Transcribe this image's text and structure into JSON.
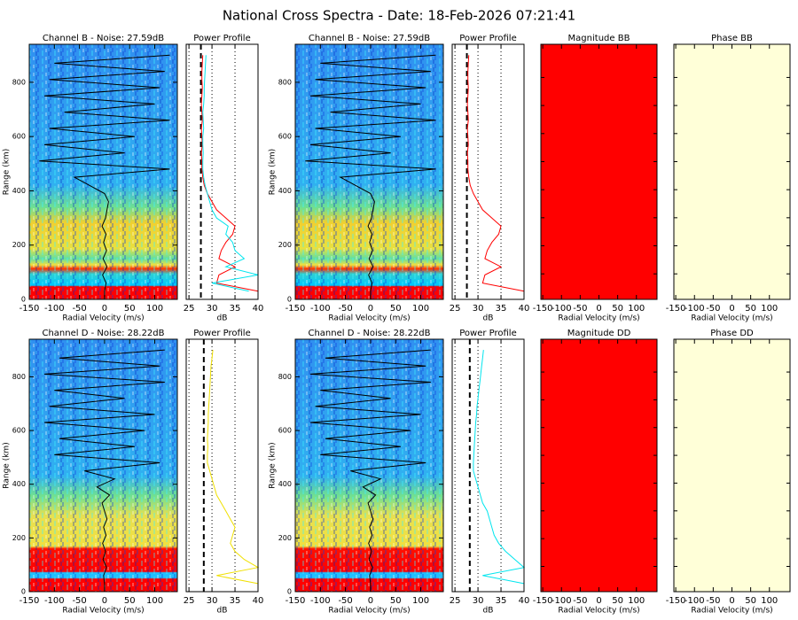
{
  "title": "National Cross Spectra - Date: 18-Feb-2026 07:21:41",
  "chart_data": [
    {
      "type": "spectra",
      "title": "Channel B - Noise: 27.59dB",
      "xlabel": "Radial Velocity (m/s)",
      "ylabel": "Range (km)",
      "xlim": [
        -150,
        145
      ],
      "xticks": [
        -150,
        -100,
        -50,
        0,
        50,
        100
      ],
      "ylim": [
        0,
        940
      ],
      "yticks": [
        0,
        200,
        400,
        600,
        800
      ],
      "color": "#000000",
      "y": [
        0,
        30,
        60,
        90,
        120,
        150,
        180,
        210,
        240,
        270,
        300,
        330,
        360,
        390,
        420,
        450,
        480,
        510,
        540,
        570,
        600,
        630,
        660,
        690,
        720,
        750,
        780,
        810,
        840,
        870,
        900
      ],
      "values": [
        0,
        0,
        3,
        -4,
        5,
        -3,
        4,
        -2,
        3,
        -5,
        2,
        5,
        8,
        0,
        -30,
        -60,
        130,
        -130,
        40,
        -120,
        60,
        -110,
        130,
        -80,
        100,
        -120,
        110,
        -110,
        120,
        -100,
        130
      ]
    },
    {
      "type": "profile",
      "title": "Power Profile",
      "xlabel": "dB",
      "xlim": [
        24.4,
        40
      ],
      "xticks": [
        25,
        30,
        35,
        40
      ],
      "ylim": [
        0,
        940
      ],
      "grid": true,
      "noise": 27.59,
      "y": [
        0,
        30,
        60,
        90,
        120,
        150,
        180,
        210,
        240,
        270,
        300,
        330,
        360,
        390,
        420,
        450,
        480,
        510,
        540,
        570,
        600,
        630,
        660,
        690,
        720,
        750,
        780,
        810,
        840,
        870,
        900
      ],
      "series": [
        {
          "color": "#ff0000",
          "values": [
            null,
            40,
            31,
            31.5,
            35,
            31.5,
            32,
            33,
            34.5,
            35,
            33,
            31,
            30,
            29,
            28.3,
            28,
            27.8,
            27.8,
            27.7,
            27.9,
            27.8,
            27.7,
            27.9,
            27.8,
            27.7,
            27.8,
            27.9,
            27.8,
            27.8,
            27.9,
            28
          ]
        },
        {
          "color": "#00e5ee",
          "values": [
            null,
            38,
            30,
            40,
            33,
            37,
            35,
            34.5,
            33,
            33.5,
            31,
            30,
            29.5,
            29,
            28.5,
            28.2,
            28,
            28,
            28.1,
            28,
            28,
            28.2,
            28.1,
            28,
            28.2,
            28.3,
            28.3,
            28.4,
            28.5,
            28.6,
            28.7
          ]
        }
      ]
    },
    {
      "type": "spectra",
      "title": "Channel B - Noise: 27.59dB",
      "xlabel": "Radial Velocity (m/s)",
      "ylabel": "Range (km)",
      "xlim": [
        -150,
        145
      ],
      "xticks": [
        -150,
        -100,
        -50,
        0,
        50,
        100
      ],
      "ylim": [
        0,
        940
      ],
      "yticks": [
        0,
        200,
        400,
        600,
        800
      ],
      "color": "#000000",
      "y": [
        0,
        30,
        60,
        90,
        120,
        150,
        180,
        210,
        240,
        270,
        300,
        330,
        360,
        390,
        420,
        450,
        480,
        510,
        540,
        570,
        600,
        630,
        660,
        690,
        720,
        750,
        780,
        810,
        840,
        870,
        900
      ],
      "values": [
        0,
        0,
        3,
        -4,
        5,
        -3,
        4,
        -2,
        3,
        -5,
        2,
        5,
        8,
        0,
        -30,
        -60,
        130,
        -130,
        40,
        -120,
        60,
        -110,
        130,
        -80,
        100,
        -120,
        110,
        -110,
        120,
        -100,
        130
      ]
    },
    {
      "type": "profile",
      "title": "Power Profile",
      "xlabel": "dB",
      "xlim": [
        24.4,
        40
      ],
      "xticks": [
        25,
        30,
        35,
        40
      ],
      "ylim": [
        0,
        940
      ],
      "grid": true,
      "noise": 27.59,
      "y": [
        0,
        30,
        60,
        90,
        120,
        150,
        180,
        210,
        240,
        270,
        300,
        330,
        360,
        390,
        420,
        450,
        480,
        510,
        540,
        570,
        600,
        630,
        660,
        690,
        720,
        750,
        780,
        810,
        840,
        870,
        900
      ],
      "series": [
        {
          "color": "#ff0000",
          "values": [
            null,
            40,
            31,
            31.5,
            35,
            31.5,
            32,
            33,
            34.5,
            35,
            33,
            31,
            30,
            29,
            28.3,
            28,
            27.8,
            27.8,
            27.7,
            27.9,
            27.8,
            27.7,
            27.9,
            27.8,
            27.7,
            27.8,
            27.9,
            27.8,
            27.8,
            27.9,
            28
          ]
        }
      ]
    },
    {
      "type": "fill",
      "title": "Magnitude BB",
      "xlabel": "Radial Velocity (m/s)",
      "xlim": [
        -155,
        155
      ],
      "xticks": [
        -150,
        -100,
        -50,
        0,
        50,
        100
      ],
      "color": "#ff0000"
    },
    {
      "type": "fill",
      "title": "Phase BB",
      "xlabel": "Radial Velocity (m/s)",
      "xlim": [
        -155,
        155
      ],
      "xticks": [
        -150,
        -100,
        -50,
        0,
        50,
        100
      ],
      "color": "#ffffd8"
    },
    {
      "type": "spectra",
      "title": "Channel D - Noise: 28.22dB",
      "xlabel": "Radial Velocity (m/s)",
      "ylabel": "Range (km)",
      "xlim": [
        -150,
        145
      ],
      "xticks": [
        -150,
        -100,
        -50,
        0,
        50,
        100
      ],
      "ylim": [
        0,
        940
      ],
      "yticks": [
        0,
        200,
        400,
        600,
        800
      ],
      "color": "#000000",
      "y": [
        0,
        30,
        60,
        90,
        120,
        150,
        180,
        210,
        240,
        270,
        300,
        330,
        360,
        390,
        420,
        450,
        480,
        510,
        540,
        570,
        600,
        630,
        660,
        690,
        720,
        750,
        780,
        810,
        840,
        870,
        900
      ],
      "values": [
        0,
        0,
        -2,
        4,
        -3,
        2,
        -4,
        3,
        -2,
        5,
        0,
        -5,
        10,
        -15,
        20,
        -40,
        110,
        -100,
        60,
        -90,
        80,
        -120,
        100,
        -110,
        40,
        -100,
        120,
        -120,
        110,
        -90,
        120
      ]
    },
    {
      "type": "profile",
      "title": "Power Profile",
      "xlabel": "dB",
      "xlim": [
        24.4,
        40
      ],
      "xticks": [
        25,
        30,
        35,
        40
      ],
      "ylim": [
        0,
        940
      ],
      "grid": true,
      "noise": 28.22,
      "y": [
        0,
        30,
        60,
        90,
        120,
        150,
        180,
        210,
        240,
        270,
        300,
        330,
        360,
        390,
        420,
        450,
        480,
        510,
        540,
        570,
        600,
        630,
        660,
        690,
        720,
        750,
        780,
        810,
        840,
        870,
        900
      ],
      "series": [
        {
          "color": "#f0e000",
          "values": [
            null,
            40,
            31,
            40,
            37,
            35,
            34,
            34.5,
            35,
            34,
            33,
            32,
            31,
            30.5,
            30,
            29.5,
            29,
            29,
            29.1,
            29,
            29.1,
            29.2,
            29.2,
            29.3,
            29.4,
            29.5,
            29.6,
            29.7,
            29.8,
            30,
            30.2
          ]
        }
      ]
    },
    {
      "type": "spectra",
      "title": "Channel D - Noise: 28.22dB",
      "xlabel": "Radial Velocity (m/s)",
      "ylabel": "Range (km)",
      "xlim": [
        -150,
        145
      ],
      "xticks": [
        -150,
        -100,
        -50,
        0,
        50,
        100
      ],
      "ylim": [
        0,
        940
      ],
      "yticks": [
        0,
        200,
        400,
        600,
        800
      ],
      "color": "#000000",
      "y": [
        0,
        30,
        60,
        90,
        120,
        150,
        180,
        210,
        240,
        270,
        300,
        330,
        360,
        390,
        420,
        450,
        480,
        510,
        540,
        570,
        600,
        630,
        660,
        690,
        720,
        750,
        780,
        810,
        840,
        870,
        900
      ],
      "values": [
        0,
        0,
        -2,
        4,
        -3,
        2,
        -4,
        3,
        -2,
        5,
        0,
        -5,
        10,
        -15,
        20,
        -40,
        110,
        -100,
        60,
        -90,
        80,
        -120,
        100,
        -110,
        40,
        -100,
        120,
        -120,
        110,
        -90,
        120
      ]
    },
    {
      "type": "profile",
      "title": "Power Profile",
      "xlabel": "dB",
      "xlim": [
        24.4,
        40
      ],
      "xticks": [
        25,
        30,
        35,
        40
      ],
      "ylim": [
        0,
        940
      ],
      "grid": true,
      "noise": 28.22,
      "y": [
        0,
        30,
        60,
        90,
        120,
        150,
        180,
        210,
        240,
        270,
        300,
        330,
        360,
        390,
        420,
        450,
        480,
        510,
        540,
        570,
        600,
        630,
        660,
        690,
        720,
        750,
        780,
        810,
        840,
        870,
        900
      ],
      "series": [
        {
          "color": "#00e5ee",
          "values": [
            null,
            40,
            31,
            40,
            38,
            36,
            34.5,
            33.5,
            33,
            32.5,
            32,
            31,
            30.5,
            30,
            29.5,
            29,
            29,
            29.1,
            29.2,
            29.3,
            29.4,
            29.5,
            29.7,
            29.8,
            30,
            30.2,
            30.4,
            30.6,
            30.8,
            31,
            31.2
          ]
        }
      ]
    },
    {
      "type": "fill",
      "title": "Magnitude DD",
      "xlabel": "Radial Velocity (m/s)",
      "xlim": [
        -155,
        155
      ],
      "xticks": [
        -150,
        -100,
        -50,
        0,
        50,
        100
      ],
      "color": "#ff0000"
    },
    {
      "type": "fill",
      "title": "Phase DD",
      "xlabel": "Radial Velocity (m/s)",
      "xlim": [
        -155,
        155
      ],
      "xticks": [
        -150,
        -100,
        -50,
        0,
        50,
        100
      ],
      "color": "#ffffd8"
    }
  ]
}
